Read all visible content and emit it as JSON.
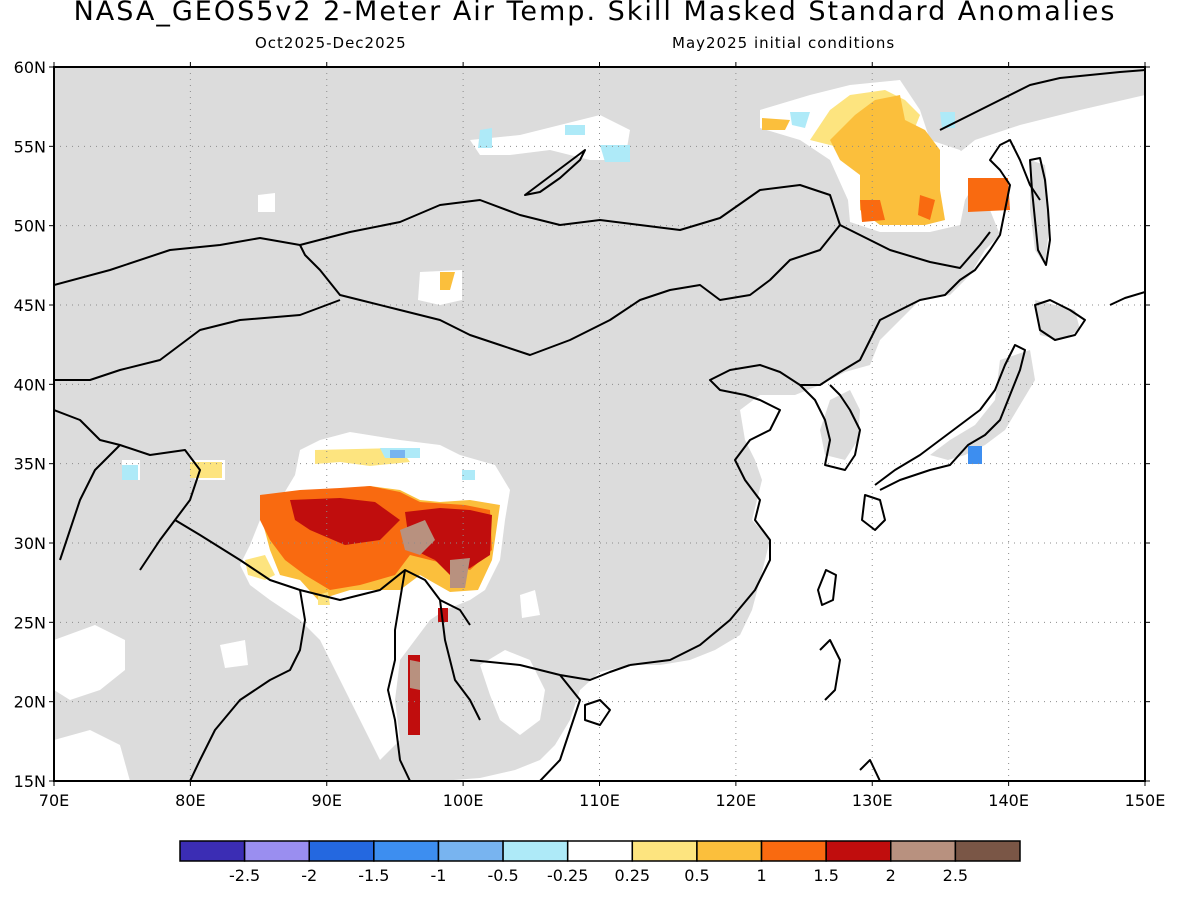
{
  "title": "NASA_GEOS5v2 2-Meter Air Temp. Skill Masked Standard Anomalies",
  "subtitle_left": "Oct2025-Dec2025",
  "subtitle_right": "May2025 initial conditions",
  "map": {
    "lon_range": [
      70,
      150
    ],
    "lat_range": [
      15,
      60
    ],
    "lat_labels": [
      "60N",
      "55N",
      "50N",
      "45N",
      "40N",
      "35N",
      "30N",
      "25N",
      "20N",
      "15N"
    ],
    "lon_labels": [
      "70E",
      "80E",
      "90E",
      "100E",
      "110E",
      "120E",
      "130E",
      "140E",
      "150E"
    ],
    "masked_color": "#dcdcdc",
    "ocean_color": "#ffffff",
    "gridlines": true
  },
  "colorbar": {
    "colors": [
      "#3b2db4",
      "#9a8ef0",
      "#2468e0",
      "#3d8ef0",
      "#78b4f0",
      "#aeeaf8",
      "#ffffff",
      "#fde47f",
      "#fbbf3c",
      "#f96a10",
      "#c00d0d",
      "#b8917f",
      "#7a5646"
    ],
    "labels": [
      "-2.5",
      "-2",
      "-1.5",
      "-1",
      "-0.5",
      "-0.25",
      "0.25",
      "0.5",
      "1",
      "1.5",
      "2",
      "2.5"
    ]
  }
}
